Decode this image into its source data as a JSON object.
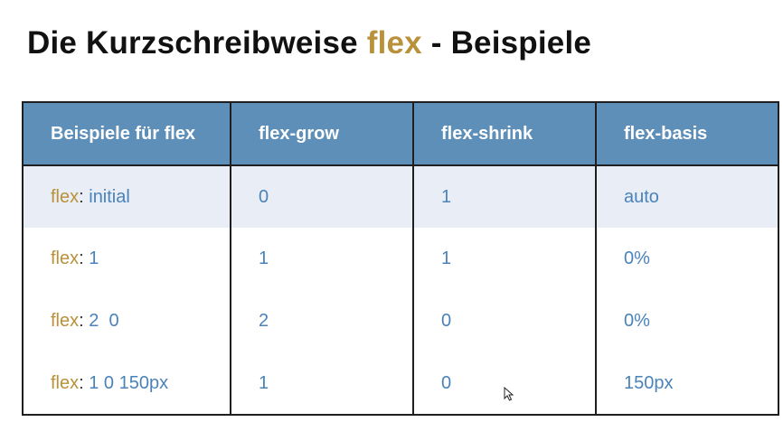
{
  "title": {
    "prefix": "Die Kurzschreibweise ",
    "keyword": "flex",
    "suffix": " - Beispiele"
  },
  "table": {
    "headers": [
      "Beispiele für flex",
      "flex-grow",
      "flex-shrink",
      "flex-basis"
    ],
    "rows": [
      {
        "keyword": "flex",
        "colon": ":",
        "value": " initial",
        "grow": "0",
        "shrink": "1",
        "basis": "auto"
      },
      {
        "keyword": "flex",
        "colon": ":",
        "value": " 1",
        "grow": "1",
        "shrink": "1",
        "basis": "0%"
      },
      {
        "keyword": "flex",
        "colon": ":",
        "value": " 2  0",
        "grow": "2",
        "shrink": "0",
        "basis": "0%"
      },
      {
        "keyword": "flex",
        "colon": ":",
        "value": " 1 0 150px",
        "grow": "1",
        "shrink": "0",
        "basis": "150px"
      }
    ]
  },
  "colors": {
    "header_bg": "#5e8fb8",
    "accent": "#b8913a",
    "value_blue": "#4a83ba",
    "shaded_row": "#e9eef6"
  },
  "icons": {
    "cursor": "mouse-pointer-icon"
  }
}
